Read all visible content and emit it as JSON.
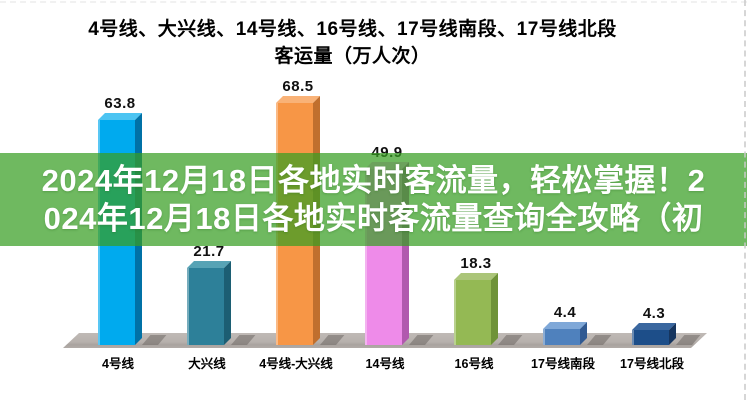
{
  "title": {
    "line1": "4号线、大兴线、14号线、16号线、17号线南段、17号线北段",
    "line2": "客运量（万人次）"
  },
  "banner": {
    "line1": "2024年12月18日各地实时客流量，轻松掌握！2",
    "line2": "024年12月18日各地实时客流量查询全攻略（初",
    "bg_color": "#389e22",
    "text_color": "#ffffff"
  },
  "chart_data": {
    "type": "bar",
    "style": "3d-column",
    "title": "4号线、大兴线、14号线、16号线、17号线南段、17号线北段 客运量（万人次）",
    "unit": "万人次",
    "categories": [
      "4号线",
      "大兴线",
      "4号线-大兴线",
      "14号线",
      "16号线",
      "17号线南段",
      "17号线北段"
    ],
    "values": [
      63.8,
      21.7,
      68.5,
      49.9,
      18.3,
      4.4,
      4.3
    ],
    "ylim": [
      0,
      75
    ],
    "grid": false,
    "legend": false,
    "data_labels": true,
    "bar_colors": {
      "front": [
        "#00aaee",
        "#2d8099",
        "#f79646",
        "#ee8be9",
        "#94b954",
        "#4f81bd",
        "#1d4e89"
      ],
      "top": [
        "#4cc4f2",
        "#57a3b5",
        "#f9b277",
        "#f5aef2",
        "#abc579",
        "#7fa8d8",
        "#3a679f"
      ],
      "side": [
        "#0071a6",
        "#1c5e73",
        "#c06f2e",
        "#b159ae",
        "#6f9338",
        "#315a92",
        "#16355e"
      ]
    },
    "floor_color": "#b7b1ad",
    "background_color": "#ffffff"
  }
}
